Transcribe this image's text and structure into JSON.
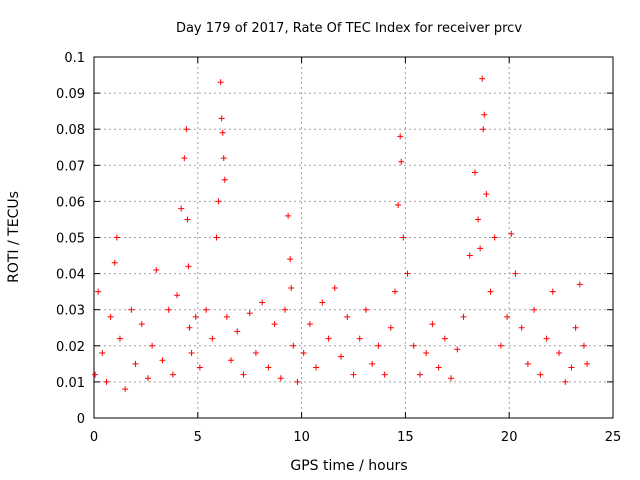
{
  "chart_data": {
    "type": "scatter",
    "title": "Day 179 of 2017, Rate Of TEC Index for receiver prcv",
    "xlabel": "GPS time / hours",
    "ylabel": "ROTI / TECUs",
    "xlim": [
      0,
      25
    ],
    "ylim": [
      0,
      0.1
    ],
    "x_ticks": [
      "0",
      "5",
      "10",
      "15",
      "20",
      "25"
    ],
    "y_ticks": [
      "0",
      "0.01",
      "0.02",
      "0.03",
      "0.04",
      "0.05",
      "0.06",
      "0.07",
      "0.08",
      "0.09",
      "0.1"
    ],
    "grid": true,
    "marker": "plus",
    "color": "#ff0000",
    "series": [
      {
        "x": [
          0.05,
          0.2,
          0.4,
          0.6,
          0.8,
          1.0,
          1.1,
          1.25,
          1.5,
          1.8,
          2.0,
          2.3,
          2.6,
          2.8,
          3.0,
          3.3,
          3.6,
          3.8,
          4.0,
          4.2,
          4.35,
          4.45,
          4.5,
          4.55,
          4.6,
          4.7,
          4.9,
          5.1,
          5.4,
          5.7,
          5.9,
          6.0,
          6.1,
          6.15,
          6.2,
          6.25,
          6.3,
          6.4,
          6.6,
          6.9,
          7.2,
          7.5,
          7.8,
          8.1,
          8.4,
          8.7,
          9.0,
          9.2,
          9.35,
          9.45,
          9.5,
          9.6,
          9.8,
          10.1,
          10.4,
          10.7,
          11.0,
          11.3,
          11.6,
          11.9,
          12.2,
          12.5,
          12.8,
          13.1,
          13.4,
          13.7,
          14.0,
          14.3,
          14.5,
          14.65,
          14.75,
          14.8,
          14.9,
          15.1,
          15.4,
          15.7,
          16.0,
          16.3,
          16.6,
          16.9,
          17.2,
          17.5,
          17.8,
          18.1,
          18.35,
          18.5,
          18.6,
          18.7,
          18.75,
          18.8,
          18.9,
          19.1,
          19.3,
          19.6,
          19.9,
          20.1,
          20.3,
          20.6,
          20.9,
          21.2,
          21.5,
          21.8,
          22.1,
          22.4,
          22.7,
          23.0,
          23.2,
          23.4,
          23.6,
          23.75
        ],
        "y": [
          0.012,
          0.035,
          0.018,
          0.01,
          0.028,
          0.043,
          0.05,
          0.022,
          0.008,
          0.03,
          0.015,
          0.026,
          0.011,
          0.02,
          0.041,
          0.016,
          0.03,
          0.012,
          0.034,
          0.058,
          0.072,
          0.08,
          0.055,
          0.042,
          0.025,
          0.018,
          0.028,
          0.014,
          0.03,
          0.022,
          0.05,
          0.06,
          0.093,
          0.083,
          0.079,
          0.072,
          0.066,
          0.028,
          0.016,
          0.024,
          0.012,
          0.029,
          0.018,
          0.032,
          0.014,
          0.026,
          0.011,
          0.03,
          0.056,
          0.044,
          0.036,
          0.02,
          0.01,
          0.018,
          0.026,
          0.014,
          0.032,
          0.022,
          0.036,
          0.017,
          0.028,
          0.012,
          0.022,
          0.03,
          0.015,
          0.02,
          0.012,
          0.025,
          0.035,
          0.059,
          0.078,
          0.071,
          0.05,
          0.04,
          0.02,
          0.012,
          0.018,
          0.026,
          0.014,
          0.022,
          0.011,
          0.019,
          0.028,
          0.045,
          0.068,
          0.055,
          0.047,
          0.094,
          0.08,
          0.084,
          0.062,
          0.035,
          0.05,
          0.02,
          0.028,
          0.051,
          0.04,
          0.025,
          0.015,
          0.03,
          0.012,
          0.022,
          0.035,
          0.018,
          0.01,
          0.014,
          0.025,
          0.037,
          0.02,
          0.015
        ]
      }
    ]
  }
}
